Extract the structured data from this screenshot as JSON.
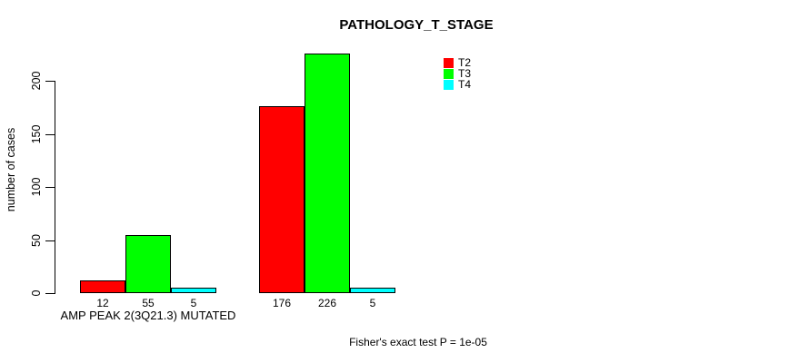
{
  "title": "PATHOLOGY_T_STAGE",
  "chart_data": {
    "type": "bar",
    "title": "PATHOLOGY_T_STAGE",
    "xlabel": "",
    "ylabel": "number of cases",
    "ylim": [
      0,
      240
    ],
    "yticks": [
      0,
      50,
      100,
      150,
      200
    ],
    "grid": false,
    "legend_position": "top-right",
    "categories": [
      "AMP PEAK 2(3Q21.3) MUTATED",
      ""
    ],
    "series": [
      {
        "name": "T2",
        "color": "#FF0000",
        "values": [
          12,
          176
        ]
      },
      {
        "name": "T3",
        "color": "#00FF00",
        "values": [
          55,
          226
        ]
      },
      {
        "name": "T4",
        "color": "#00FFFF",
        "values": [
          5,
          5
        ]
      }
    ],
    "bar_value_labels": true,
    "annotation": "Fisher's exact test P = 1e-05"
  }
}
